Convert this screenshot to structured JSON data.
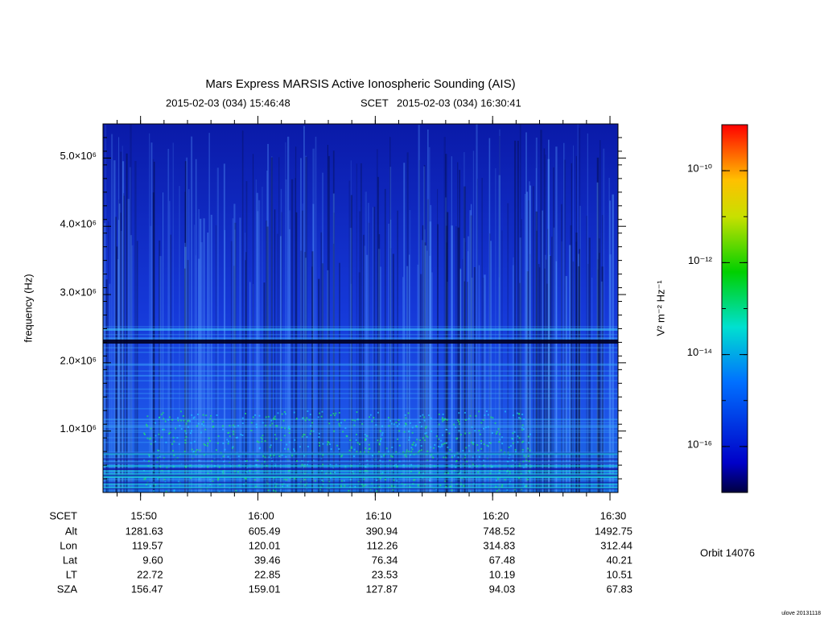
{
  "chart_data": {
    "type": "spectrogram",
    "title": "Mars Express MARSIS Active Ionospheric Sounding (AIS)",
    "subtitle": {
      "start": "2015-02-03 (034) 15:46:48",
      "middle": "SCET",
      "end": "2015-02-03 (034) 16:30:41"
    },
    "xlim": [
      "15:46:48",
      "16:30:41"
    ],
    "xlabel": "SCET",
    "x_ticks": [
      "15:50",
      "16:00",
      "16:10",
      "16:20",
      "16:30"
    ],
    "ylabel": "frequency (Hz)",
    "ylim": [
      100000,
      5500000
    ],
    "yticks": [
      {
        "value": 1000000,
        "label": "1.0×10⁶"
      },
      {
        "value": 2000000,
        "label": "2.0×10⁶"
      },
      {
        "value": 3000000,
        "label": "3.0×10⁶"
      },
      {
        "value": 4000000,
        "label": "4.0×10⁶"
      },
      {
        "value": 5000000,
        "label": "5.0×10⁶"
      }
    ],
    "colorbar": {
      "label": "V² m⁻² Hz⁻¹",
      "log_scale": true,
      "clim": [
        1e-17,
        1e-09
      ],
      "ticks": [
        {
          "value": 1e-10,
          "label": "10⁻¹⁰"
        },
        {
          "value": 1e-12,
          "label": "10⁻¹²"
        },
        {
          "value": 1e-14,
          "label": "10⁻¹⁴"
        },
        {
          "value": 1e-16,
          "label": "10⁻¹⁶"
        }
      ]
    },
    "ephemeris": [
      {
        "label": "Alt",
        "values": [
          "1281.63",
          "605.49",
          "390.94",
          "748.52",
          "1492.75"
        ]
      },
      {
        "label": "Lon",
        "values": [
          "119.57",
          "120.01",
          "112.26",
          "314.83",
          "312.44"
        ]
      },
      {
        "label": "Lat",
        "values": [
          "9.60",
          "39.46",
          "76.34",
          "67.48",
          "40.21"
        ]
      },
      {
        "label": "LT",
        "values": [
          "22.72",
          "22.85",
          "23.53",
          "10.19",
          "10.51"
        ]
      },
      {
        "label": "SZA",
        "values": [
          "156.47",
          "159.01",
          "127.87",
          "94.03",
          "67.83"
        ]
      }
    ],
    "orbit": "Orbit 14076",
    "footer": "ulove 20131118"
  }
}
